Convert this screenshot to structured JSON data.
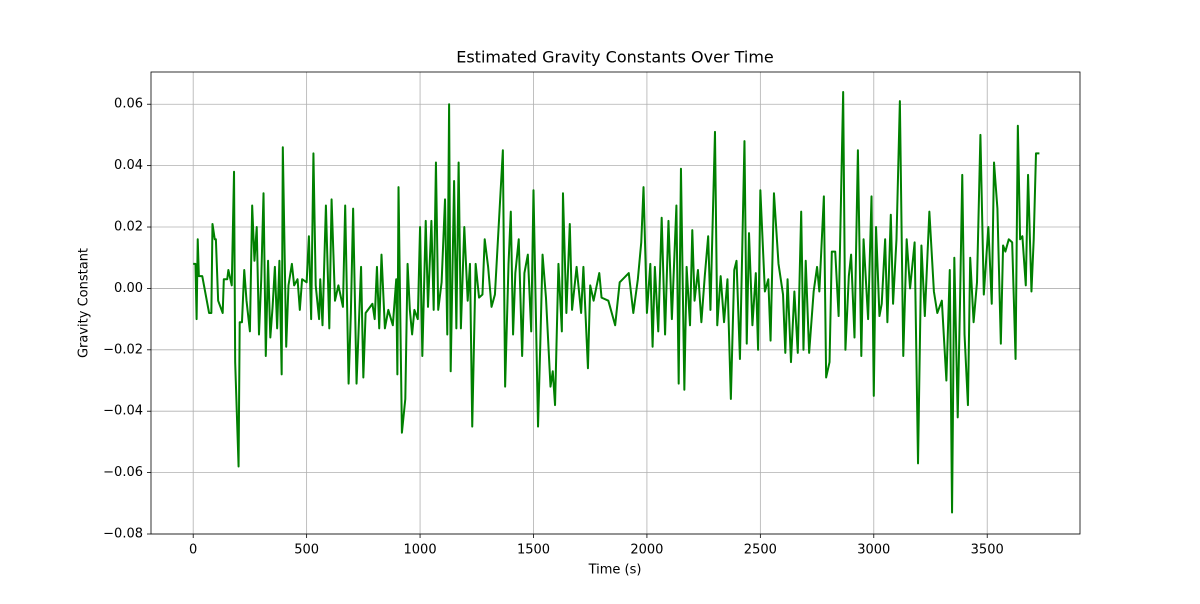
{
  "chart_data": {
    "type": "line",
    "title": "Estimated Gravity Constants Over Time",
    "xlabel": "Time (s)",
    "ylabel": "Gravity Constant",
    "color": "#008000",
    "grid": true,
    "xlim": [
      -186,
      3909
    ],
    "ylim": [
      -0.08,
      0.0705
    ],
    "xticks": [
      0,
      500,
      1000,
      1500,
      2000,
      2500,
      3000,
      3500
    ],
    "yticks": [
      {
        "value": -0.08,
        "label": "−0.08"
      },
      {
        "value": -0.06,
        "label": "−0.06"
      },
      {
        "value": -0.04,
        "label": "−0.04"
      },
      {
        "value": -0.02,
        "label": "−0.02"
      },
      {
        "value": 0,
        "label": "0.00"
      },
      {
        "value": 0.02,
        "label": "0.02"
      },
      {
        "value": 0.04,
        "label": "0.04"
      },
      {
        "value": 0.06,
        "label": "0.06"
      }
    ],
    "x": [
      0,
      10,
      15,
      20,
      25,
      40,
      70,
      80,
      85,
      95,
      100,
      110,
      130,
      135,
      150,
      155,
      170,
      180,
      185,
      200,
      205,
      215,
      225,
      235,
      250,
      260,
      270,
      280,
      290,
      300,
      310,
      320,
      330,
      340,
      350,
      360,
      370,
      380,
      390,
      395,
      410,
      420,
      435,
      445,
      460,
      470,
      480,
      500,
      510,
      520,
      530,
      540,
      555,
      560,
      570,
      585,
      600,
      610,
      625,
      640,
      660,
      670,
      685,
      695,
      705,
      720,
      740,
      750,
      760,
      790,
      800,
      810,
      820,
      830,
      845,
      860,
      880,
      895,
      900,
      905,
      920,
      935,
      945,
      955,
      965,
      975,
      990,
      1000,
      1010,
      1025,
      1035,
      1050,
      1060,
      1070,
      1080,
      1095,
      1110,
      1120,
      1128,
      1135,
      1150,
      1160,
      1170,
      1180,
      1195,
      1210,
      1220,
      1230,
      1245,
      1260,
      1275,
      1285,
      1300,
      1315,
      1330,
      1365,
      1375,
      1390,
      1400,
      1410,
      1420,
      1435,
      1450,
      1460,
      1475,
      1490,
      1500,
      1520,
      1530,
      1540,
      1555,
      1575,
      1585,
      1595,
      1610,
      1625,
      1630,
      1645,
      1660,
      1670,
      1690,
      1710,
      1720,
      1740,
      1750,
      1765,
      1790,
      1800,
      1830,
      1860,
      1880,
      1920,
      1940,
      1960,
      1975,
      1985,
      2000,
      2015,
      2025,
      2035,
      2050,
      2065,
      2080,
      2095,
      2110,
      2130,
      2140,
      2150,
      2165,
      2175,
      2190,
      2200,
      2210,
      2225,
      2240,
      2255,
      2270,
      2280,
      2300,
      2310,
      2325,
      2340,
      2355,
      2370,
      2385,
      2395,
      2410,
      2420,
      2430,
      2440,
      2450,
      2465,
      2480,
      2490,
      2500,
      2520,
      2535,
      2545,
      2560,
      2580,
      2600,
      2610,
      2620,
      2635,
      2650,
      2665,
      2680,
      2690,
      2700,
      2715,
      2735,
      2750,
      2760,
      2780,
      2790,
      2805,
      2815,
      2830,
      2845,
      2865,
      2875,
      2890,
      2900,
      2915,
      2930,
      2945,
      2955,
      2975,
      2990,
      3000,
      3010,
      3025,
      3035,
      3050,
      3060,
      3075,
      3085,
      3100,
      3115,
      3130,
      3145,
      3160,
      3180,
      3195,
      3210,
      3225,
      3245,
      3265,
      3280,
      3300,
      3320,
      3335,
      3345,
      3355,
      3370,
      3380,
      3390,
      3400,
      3415,
      3425,
      3440,
      3455,
      3470,
      3485,
      3505,
      3520,
      3530,
      3545,
      3560,
      3570,
      3580,
      3595,
      3610,
      3625,
      3635,
      3645,
      3655,
      3670,
      3680,
      3695,
      3705,
      3715,
      3730
    ],
    "values": [
      0.008,
      0.008,
      -0.01,
      0.016,
      0.004,
      0.004,
      -0.008,
      -0.008,
      0.021,
      0.016,
      0.016,
      -0.004,
      -0.008,
      0.003,
      0.003,
      0.006,
      0.001,
      0.038,
      -0.024,
      -0.058,
      -0.011,
      -0.011,
      0.006,
      -0.004,
      -0.014,
      0.027,
      0.009,
      0.02,
      -0.015,
      0.003,
      0.031,
      -0.022,
      0.009,
      -0.016,
      -0.006,
      0.007,
      -0.013,
      0.009,
      -0.028,
      0.046,
      -0.019,
      0.001,
      0.008,
      0.001,
      0.003,
      -0.007,
      0.003,
      0.002,
      0.017,
      -0.01,
      0.044,
      0.001,
      -0.01,
      0.003,
      -0.012,
      0.027,
      -0.013,
      0.029,
      -0.004,
      0.001,
      -0.006,
      0.027,
      -0.031,
      -0.008,
      0.026,
      -0.031,
      0.007,
      -0.029,
      -0.008,
      -0.005,
      -0.01,
      0.007,
      -0.013,
      0.011,
      -0.013,
      -0.007,
      -0.012,
      0.003,
      -0.028,
      0.033,
      -0.047,
      -0.036,
      0.008,
      -0.007,
      -0.015,
      -0.007,
      -0.01,
      0.02,
      -0.022,
      0.022,
      -0.006,
      0.022,
      -0.007,
      0.041,
      -0.007,
      0.002,
      0.029,
      -0.015,
      0.06,
      -0.027,
      0.035,
      -0.013,
      0.041,
      -0.013,
      0.02,
      -0.004,
      0.008,
      -0.045,
      0.008,
      -0.003,
      -0.002,
      0.016,
      0.007,
      -0.006,
      -0.002,
      0.045,
      -0.032,
      0.008,
      0.025,
      -0.015,
      0.005,
      0.016,
      -0.022,
      0.005,
      0.011,
      -0.014,
      0.032,
      -0.045,
      -0.018,
      0.011,
      -0.003,
      -0.032,
      -0.027,
      -0.038,
      0.008,
      -0.014,
      0.031,
      -0.008,
      0.021,
      -0.007,
      0.007,
      -0.008,
      0.007,
      -0.026,
      0.001,
      -0.004,
      0.005,
      -0.003,
      -0.004,
      -0.012,
      0.002,
      0.005,
      -0.008,
      0.003,
      0.015,
      0.033,
      -0.008,
      0.008,
      -0.019,
      0.007,
      -0.014,
      0.023,
      -0.015,
      0.022,
      -0.01,
      0.027,
      -0.031,
      0.039,
      -0.033,
      0.007,
      -0.012,
      0.019,
      -0.004,
      0.006,
      -0.011,
      0.004,
      0.017,
      -0.007,
      0.051,
      -0.012,
      0.004,
      -0.011,
      0.003,
      -0.036,
      0.006,
      0.009,
      -0.023,
      0.012,
      0.048,
      -0.018,
      0.018,
      -0.012,
      0.005,
      -0.02,
      0.032,
      -0.001,
      0.003,
      -0.017,
      0.031,
      0.008,
      -0.002,
      -0.021,
      0.003,
      -0.024,
      -0.001,
      -0.021,
      0.025,
      -0.02,
      0.009,
      -0.021,
      -0.001,
      0.007,
      -0.001,
      0.03,
      -0.029,
      -0.024,
      0.012,
      0.012,
      -0.009,
      0.064,
      -0.02,
      0.004,
      0.011,
      -0.016,
      0.045,
      -0.022,
      0.016,
      -0.01,
      0.03,
      -0.035,
      0.02,
      -0.009,
      -0.005,
      0.016,
      -0.011,
      0.024,
      -0.005,
      0.016,
      0.061,
      -0.022,
      0.016,
      0.0,
      0.015,
      -0.057,
      0.014,
      -0.009,
      0.025,
      -0.001,
      -0.008,
      -0.004,
      -0.03,
      0.006,
      -0.073,
      0.01,
      -0.042,
      -0.005,
      0.037,
      -0.015,
      -0.038,
      0.01,
      -0.011,
      0.002,
      0.05,
      -0.002,
      0.02,
      -0.005,
      0.041,
      0.026,
      -0.018,
      0.014,
      0.012,
      0.016,
      0.015,
      -0.023,
      0.053,
      0.016,
      0.017,
      0.001,
      0.037,
      -0.001,
      0.016,
      0.044,
      0.044
    ]
  }
}
